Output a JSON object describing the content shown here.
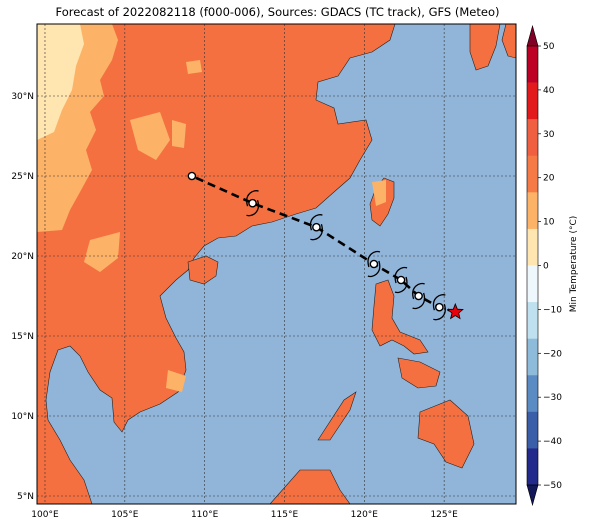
{
  "title": "Forecast of 2022082118 (f000-006), Sources: GDACS (TC track), GFS (Meteo)",
  "map": {
    "lon_range": [
      99.5,
      129.5
    ],
    "lat_range": [
      4.5,
      34.5
    ],
    "lon_ticks": [
      {
        "value": 100,
        "label": "100°E"
      },
      {
        "value": 105,
        "label": "105°E"
      },
      {
        "value": 110,
        "label": "110°E"
      },
      {
        "value": 115,
        "label": "115°E"
      },
      {
        "value": 120,
        "label": "120°E"
      },
      {
        "value": 125,
        "label": "125°E"
      }
    ],
    "lat_ticks": [
      {
        "value": 5,
        "label": "5°N"
      },
      {
        "value": 10,
        "label": "10°N"
      },
      {
        "value": 15,
        "label": "15°N"
      },
      {
        "value": 20,
        "label": "20°N"
      },
      {
        "value": 25,
        "label": "25°N"
      },
      {
        "value": 30,
        "label": "30°N"
      }
    ],
    "gridlines": true,
    "ocean_color": "#91b4d9"
  },
  "track": {
    "current_position": {
      "lon": 125.7,
      "lat": 16.5
    },
    "points": [
      {
        "lon": 124.7,
        "lat": 16.8
      },
      {
        "lon": 123.4,
        "lat": 17.5
      },
      {
        "lon": 122.3,
        "lat": 18.5
      },
      {
        "lon": 120.6,
        "lat": 19.5
      },
      {
        "lon": 117.0,
        "lat": 21.8
      },
      {
        "lon": 113.0,
        "lat": 23.3
      },
      {
        "lon": 109.2,
        "lat": 25.0
      }
    ]
  },
  "colorbar": {
    "label": "Min Temperature (°C)",
    "ticks": [
      "50",
      "40",
      "30",
      "20",
      "10",
      "0",
      "−10",
      "−20",
      "−30",
      "−40",
      "−50"
    ],
    "colors": [
      "#800026",
      "#bd0026",
      "#e31a1c",
      "#f06040",
      "#f57a45",
      "#fdb367",
      "#ffe5b0",
      "#eef7fb",
      "#bfe0ee",
      "#8fbbda",
      "#5a8cc3",
      "#3a5fa8",
      "#222a8c",
      "#121858"
    ]
  }
}
